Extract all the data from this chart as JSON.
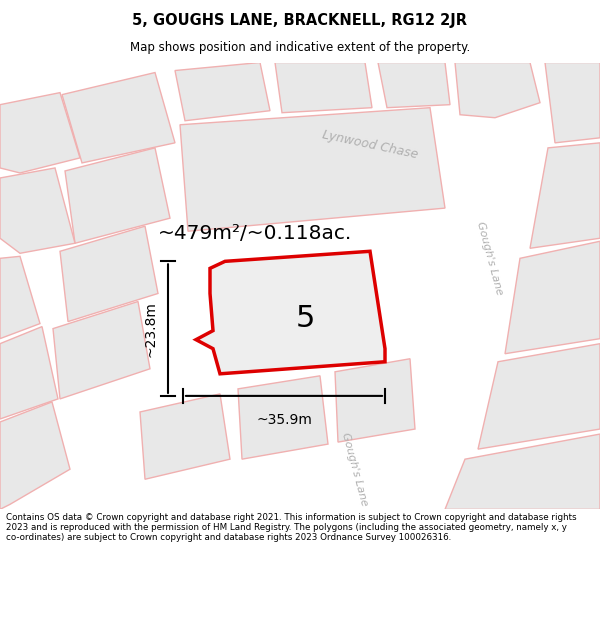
{
  "title_line1": "5, GOUGHS LANE, BRACKNELL, RG12 2JR",
  "title_line2": "Map shows position and indicative extent of the property.",
  "area_text": "~479m²/~0.118ac.",
  "label_number": "5",
  "dim_width": "~35.9m",
  "dim_height": "~23.8m",
  "road_label_1": "Lynwood Chase",
  "road_label_2": "Gough's Lane",
  "road_label_3": "Gough's Lane",
  "footer_text": "Contains OS data © Crown copyright and database right 2021. This information is subject to Crown copyright and database rights 2023 and is reproduced with the permission of HM Land Registry. The polygons (including the associated geometry, namely x, y co-ordinates) are subject to Crown copyright and database rights 2023 Ordnance Survey 100026316.",
  "bg_color": "#ffffff",
  "map_bg": "#ffffff",
  "block_fill": "#e8e8e8",
  "block_border": "#f0b0b0",
  "road_fill": "#ffffff",
  "property_fill": "#eeeeee",
  "property_border": "#dd0000",
  "dim_line_color": "#000000",
  "road_label_color": "#b0b0b0",
  "title_color": "#000000",
  "area_text_color": "#000000",
  "label_color": "#000000",
  "footer_color": "#000000"
}
